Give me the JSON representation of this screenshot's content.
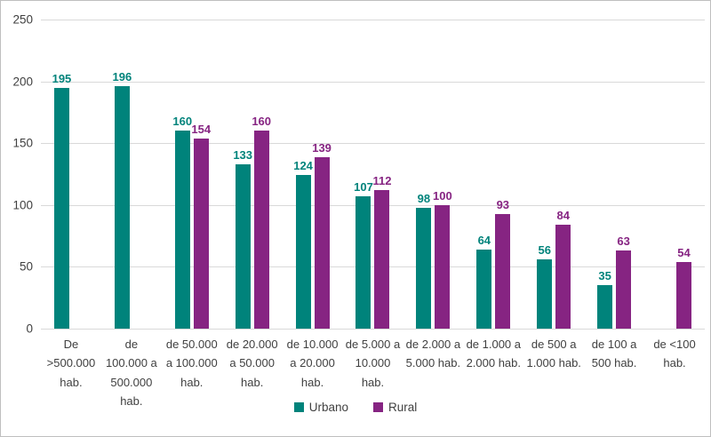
{
  "chart_data": {
    "type": "bar",
    "title": "",
    "xlabel": "",
    "ylabel": "",
    "categories": [
      "De >500.000 hab.",
      "de 100.000 a 500.000 hab.",
      "de 50.000 a 100.000 hab.",
      "de 20.000 a 50.000 hab.",
      "de 10.000 a 20.000 hab.",
      "de 5.000 a 10.000 hab.",
      "de 2.000 a 5.000 hab.",
      "de 1.000 a 2.000 hab.",
      "de 500 a 1.000 hab.",
      "de 100 a 500 hab.",
      "de <100 hab."
    ],
    "series": [
      {
        "name": "Urbano",
        "color": "#00837B",
        "values": [
          195,
          196,
          160,
          133,
          124,
          107,
          98,
          64,
          56,
          35,
          null
        ]
      },
      {
        "name": "Rural",
        "color": "#862482",
        "values": [
          null,
          null,
          154,
          160,
          139,
          112,
          100,
          93,
          84,
          63,
          54
        ]
      }
    ],
    "ylim": [
      0,
      250
    ],
    "yticks": [
      0,
      50,
      100,
      150,
      200,
      250
    ],
    "grid": true,
    "grid_color": "#D9D9D9",
    "axis_text_color": "#404040",
    "frame_color": "#BFBFBF",
    "legend_position": "bottom-center",
    "value_labels": true
  }
}
